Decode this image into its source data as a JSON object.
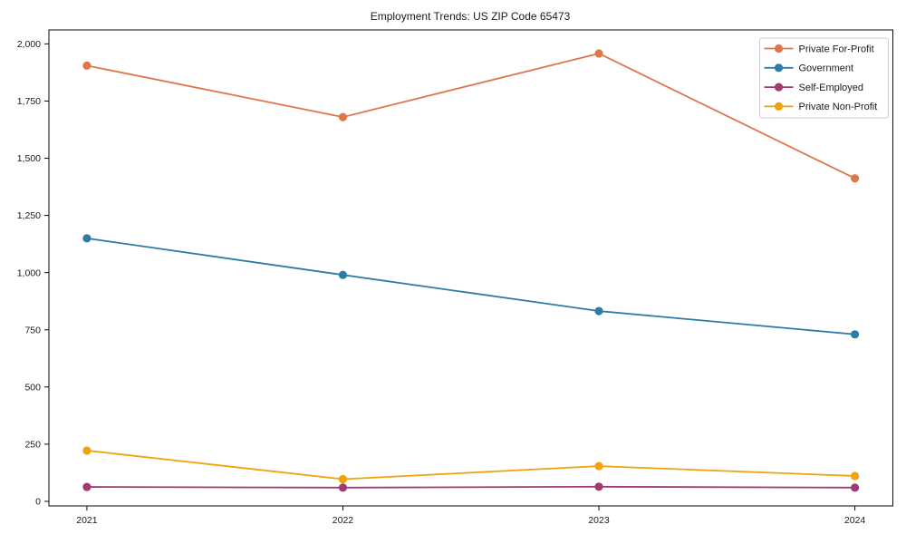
{
  "chart_data": {
    "type": "line",
    "title": "Employment Trends: US ZIP Code 65473",
    "x": [
      "2021",
      "2022",
      "2023",
      "2024"
    ],
    "series": [
      {
        "name": "Private For-Profit",
        "color": "#df764a",
        "values": [
          1905,
          1680,
          1958,
          1412
        ]
      },
      {
        "name": "Government",
        "color": "#2d7ca6",
        "values": [
          1150,
          990,
          832,
          730
        ]
      },
      {
        "name": "Self-Employed",
        "color": "#a23a72",
        "values": [
          63,
          60,
          64,
          60
        ]
      },
      {
        "name": "Private Non-Profit",
        "color": "#f0a20a",
        "values": [
          222,
          97,
          154,
          111
        ]
      }
    ],
    "yticks": [
      0,
      250,
      500,
      750,
      1000,
      1250,
      1500,
      1750,
      2000
    ],
    "ylim": [
      -20,
      2061
    ],
    "xlabel": "",
    "ylabel": "",
    "grid": false,
    "legend_position": "upper right"
  },
  "colors": {
    "background": "#ffffff",
    "text": "#1a1a1a",
    "spine": "#0a0a0a",
    "legend_border": "#cccccc",
    "legend_background": "#ffffff"
  }
}
